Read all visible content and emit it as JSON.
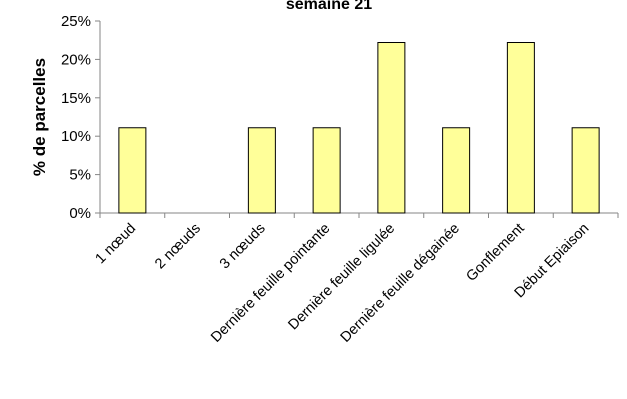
{
  "chart_data": {
    "type": "bar",
    "title": "semaine 21",
    "ylabel": "% de parcelles",
    "xlabel": "",
    "categories": [
      "1 nœud",
      "2 nœuds",
      "3 nœuds",
      "Dernière feuille pointante",
      "Dernière feuille ligulée",
      "Dernière feuille dégainée",
      "Gonflement",
      "Début Epiaison"
    ],
    "values": [
      11.1,
      0,
      11.1,
      11.1,
      22.2,
      11.1,
      22.2,
      11.1
    ],
    "ylim": [
      0,
      25
    ],
    "yticks": [
      0,
      5,
      10,
      15,
      20,
      25
    ],
    "ytick_labels": [
      "0%",
      "5%",
      "10%",
      "15%",
      "20%",
      "25%"
    ],
    "grid": false,
    "legend": "none",
    "colors": {
      "bar_fill": "#ffff99",
      "bar_stroke": "#000000",
      "axis": "#868686"
    }
  }
}
